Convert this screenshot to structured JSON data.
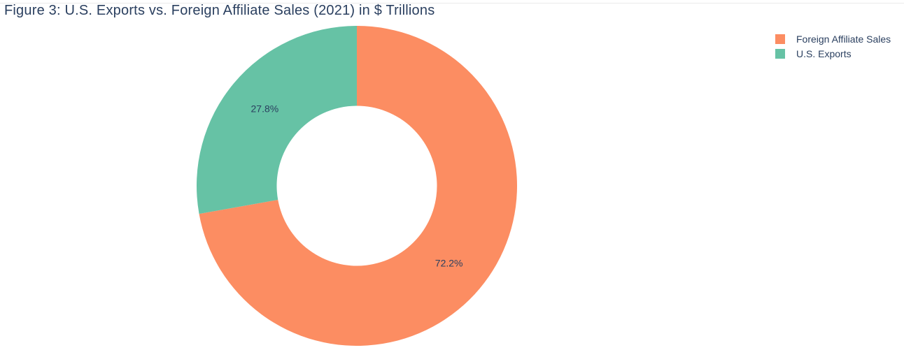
{
  "chart_data": {
    "type": "pie",
    "title": "Figure 3: U.S. Exports vs. Foreign Affiliate Sales (2021) in $ Trillions",
    "hole": 0.5,
    "labels": [
      "Foreign Affiliate Sales",
      "U.S. Exports"
    ],
    "percent_labels": [
      "72.2%",
      "27.8%"
    ],
    "values": [
      72.2,
      27.8
    ],
    "colors": [
      "#fc8d62",
      "#66c2a5"
    ],
    "direction": "clockwise",
    "rotation_start": "top",
    "legend_position": "top-right"
  }
}
